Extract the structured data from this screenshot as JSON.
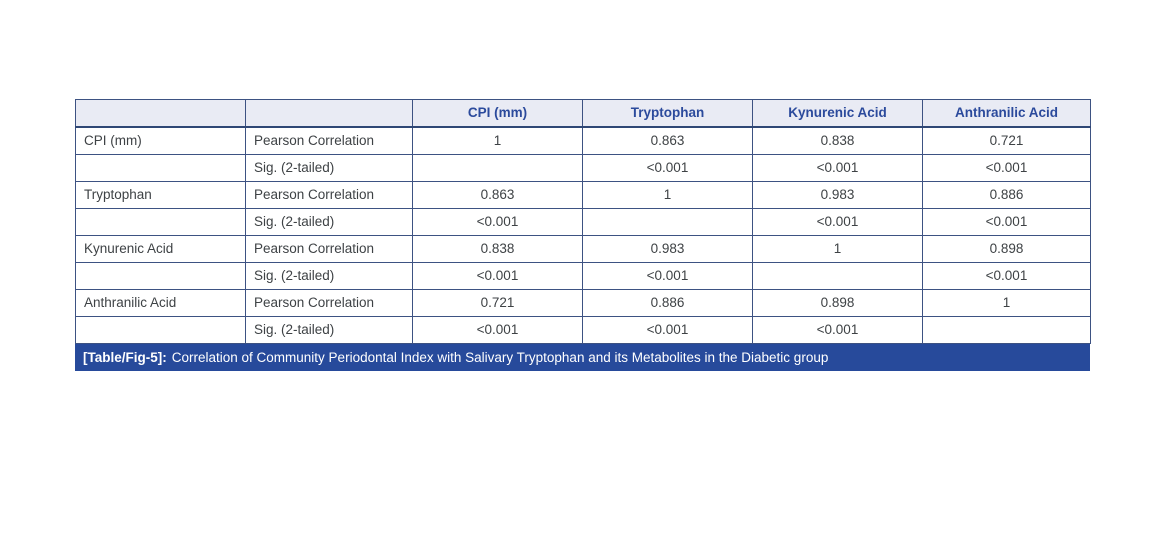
{
  "colors": {
    "header_bg": "#e9ebf4",
    "header_text": "#2b4a9c",
    "border": "#3d5282",
    "caption_bg": "#274a9b",
    "caption_text": "#ffffff",
    "body_text": "#3e4245"
  },
  "table": {
    "columns": [
      "",
      "",
      "CPI (mm)",
      "Tryptophan",
      "Kynurenic Acid",
      "Anthranilic Acid"
    ],
    "rows": [
      [
        "CPI (mm)",
        "Pearson Correlation",
        "1",
        "0.863",
        "0.838",
        "0.721"
      ],
      [
        "",
        "Sig. (2-tailed)",
        "",
        "<0.001",
        "<0.001",
        "<0.001"
      ],
      [
        "Tryptophan",
        "Pearson Correlation",
        "0.863",
        "1",
        "0.983",
        "0.886"
      ],
      [
        "",
        "Sig. (2-tailed)",
        "<0.001",
        "",
        "<0.001",
        "<0.001"
      ],
      [
        "Kynurenic Acid",
        "Pearson Correlation",
        "0.838",
        "0.983",
        "1",
        "0.898"
      ],
      [
        "",
        "Sig. (2-tailed)",
        "<0.001",
        "<0.001",
        "",
        "<0.001"
      ],
      [
        "Anthranilic Acid",
        "Pearson Correlation",
        "0.721",
        "0.886",
        "0.898",
        "1"
      ],
      [
        "",
        "Sig. (2-tailed)",
        "<0.001",
        "<0.001",
        "<0.001",
        ""
      ]
    ],
    "caption_tag": "[Table/Fig-5]:",
    "caption_text": "Correlation of Community Periodontal Index with Salivary Tryptophan and its Metabolites in the Diabetic group"
  }
}
